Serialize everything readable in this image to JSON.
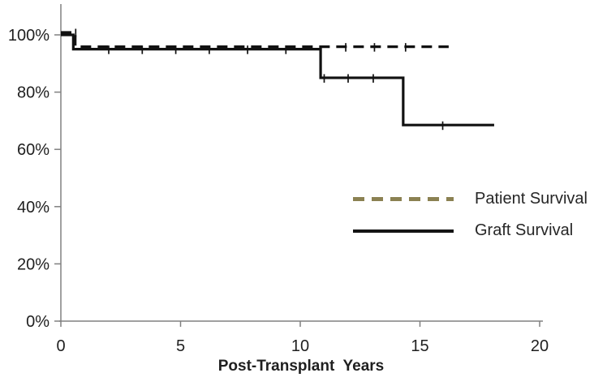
{
  "figure": {
    "background": "#ffffff",
    "axis_color": "#808080",
    "text_color": "#1f1f1f",
    "line_color": "#111111"
  },
  "chart_data": {
    "type": "line",
    "subtype": "kaplan-meier-step-survival",
    "title": "",
    "xlabel": "Post-Transplant  Years",
    "ylabel": "",
    "xlim": [
      0,
      20
    ],
    "ylim_pct": [
      0,
      100
    ],
    "x_ticks": [
      0,
      5,
      10,
      15,
      20
    ],
    "y_ticks": [
      {
        "value": 0,
        "label": "0%"
      },
      {
        "value": 20,
        "label": "20%"
      },
      {
        "value": 40,
        "label": "40%"
      },
      {
        "value": 60,
        "label": "60%"
      },
      {
        "value": 80,
        "label": "80%"
      },
      {
        "value": 100,
        "label": "100%"
      }
    ],
    "grid": false,
    "legend": {
      "position": "inside-center-right",
      "entries": [
        {
          "label": "Patient Survival",
          "line_style": "dashed",
          "swatch_color": "#8b8152"
        },
        {
          "label": "Graft Survival",
          "line_style": "solid",
          "swatch_color": "#141414"
        }
      ]
    },
    "series": [
      {
        "name": "Patient Survival",
        "line_style": "dashed",
        "color": "#111111",
        "points": [
          [
            0,
            100
          ],
          [
            0.6,
            100
          ],
          [
            0.6,
            95
          ],
          [
            16.2,
            95
          ]
        ],
        "censor_marks": [
          [
            0.62,
            100
          ],
          [
            11.9,
            95
          ],
          [
            13.1,
            95
          ],
          [
            14.4,
            95
          ]
        ]
      },
      {
        "name": "Graft Survival",
        "line_style": "solid",
        "color": "#111111",
        "points": [
          [
            0,
            100
          ],
          [
            0.52,
            100
          ],
          [
            0.52,
            95
          ],
          [
            10.85,
            95
          ],
          [
            10.85,
            85
          ],
          [
            14.3,
            85
          ],
          [
            14.3,
            68.5
          ],
          [
            18.1,
            68.5
          ]
        ],
        "censor_marks": [
          [
            2.0,
            95
          ],
          [
            3.4,
            95
          ],
          [
            4.8,
            95
          ],
          [
            6.2,
            95
          ],
          [
            7.8,
            95
          ],
          [
            9.4,
            95
          ],
          [
            11.0,
            85
          ],
          [
            12.0,
            85
          ],
          [
            13.05,
            85
          ],
          [
            15.95,
            68.5
          ]
        ]
      }
    ]
  }
}
